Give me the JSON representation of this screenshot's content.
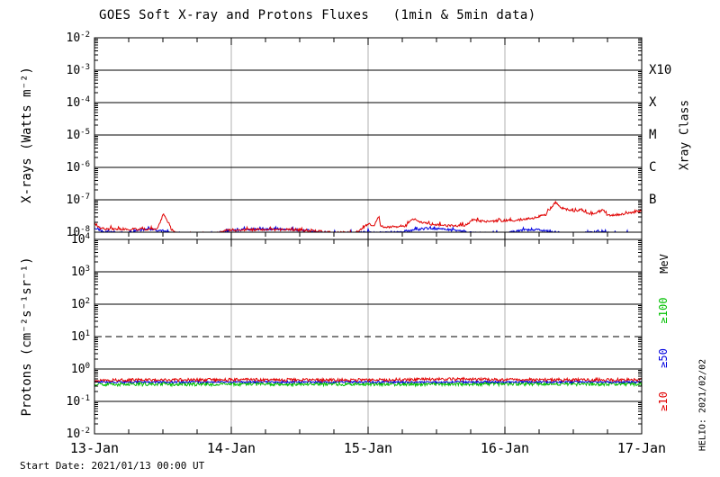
{
  "title": "GOES Soft X-ray and Protons Fluxes   (1min & 5min data)",
  "footer": {
    "start_date": "Start Date: 2021/01/13 00:00 UT"
  },
  "watermark": "HELIO: 2021/02/02",
  "chart_data": {
    "type": "line",
    "title": "GOES Soft X-ray and Protons Fluxes   (1min & 5min data)",
    "x_axis": {
      "tick_labels": [
        "13-Jan",
        "14-Jan",
        "15-Jan",
        "16-Jan",
        "17-Jan"
      ],
      "span_days": 4,
      "minor_tick_hours": 6,
      "day_gridlines": [
        1,
        2,
        3
      ],
      "gridline_color": "#b0b0b0"
    },
    "panels": [
      {
        "name": "xray-flux-panel",
        "ylabel": "X-rays (Watts m⁻²)",
        "y_log_range": [
          -8,
          -2
        ],
        "y_tick_exponents": [
          -2,
          -3,
          -4,
          -5,
          -6,
          -7,
          -8
        ],
        "right_axis_title": "Xray Class",
        "class_labels": [
          {
            "label": "X10",
            "log_level": -3
          },
          {
            "label": "X",
            "log_level": -4
          },
          {
            "label": "M",
            "log_level": -5
          },
          {
            "label": "C",
            "log_level": -6
          },
          {
            "label": "B",
            "log_level": -7
          }
        ],
        "solid_hlines_log": [
          -3,
          -4,
          -5,
          -6,
          -7
        ],
        "dashed_hlines_log": [],
        "series": [
          {
            "name": "xray-series-blue",
            "color": "#0000e0",
            "noise": 0.035,
            "spiky": true,
            "points": [
              [
                0.0,
                -7.9
              ],
              [
                0.06,
                -7.98
              ],
              [
                0.25,
                -8.02
              ],
              [
                0.32,
                -7.94
              ],
              [
                0.42,
                -7.92
              ],
              [
                0.5,
                -7.95
              ],
              [
                0.56,
                -8.02
              ],
              [
                0.75,
                -8.06
              ],
              [
                0.9,
                -8.04
              ],
              [
                0.98,
                -7.96
              ],
              [
                1.15,
                -7.91
              ],
              [
                1.35,
                -7.9
              ],
              [
                1.55,
                -7.94
              ],
              [
                1.65,
                -8.0
              ],
              [
                1.85,
                -8.03
              ],
              [
                2.0,
                -7.99
              ],
              [
                2.1,
                -8.02
              ],
              [
                2.3,
                -7.96
              ],
              [
                2.42,
                -7.88
              ],
              [
                2.55,
                -7.9
              ],
              [
                2.65,
                -7.96
              ],
              [
                2.8,
                -8.03
              ],
              [
                3.0,
                -8.04
              ],
              [
                3.12,
                -7.94
              ],
              [
                3.22,
                -7.92
              ],
              [
                3.35,
                -8.0
              ],
              [
                3.5,
                -8.05
              ],
              [
                3.68,
                -7.99
              ],
              [
                3.8,
                -8.04
              ],
              [
                4.0,
                -8.03
              ]
            ]
          },
          {
            "name": "xray-series-red",
            "color": "#e00000",
            "noise": 0.035,
            "spiky": true,
            "points": [
              [
                0.0,
                -7.72
              ],
              [
                0.04,
                -7.88
              ],
              [
                0.1,
                -7.9
              ],
              [
                0.45,
                -7.91
              ],
              [
                0.47,
                -7.8
              ],
              [
                0.505,
                -7.42
              ],
              [
                0.53,
                -7.62
              ],
              [
                0.56,
                -7.9
              ],
              [
                0.6,
                -8.02
              ],
              [
                0.7,
                -8.06
              ],
              [
                0.9,
                -8.04
              ],
              [
                0.96,
                -7.95
              ],
              [
                1.1,
                -7.93
              ],
              [
                1.4,
                -7.92
              ],
              [
                1.6,
                -7.96
              ],
              [
                1.75,
                -8.01
              ],
              [
                1.9,
                -8.02
              ],
              [
                1.96,
                -7.9
              ],
              [
                2.0,
                -7.74
              ],
              [
                2.04,
                -7.82
              ],
              [
                2.08,
                -7.5
              ],
              [
                2.09,
                -7.82
              ],
              [
                2.15,
                -7.84
              ],
              [
                2.28,
                -7.8
              ],
              [
                2.33,
                -7.58
              ],
              [
                2.37,
                -7.68
              ],
              [
                2.45,
                -7.76
              ],
              [
                2.6,
                -7.8
              ],
              [
                2.72,
                -7.78
              ],
              [
                2.76,
                -7.62
              ],
              [
                2.85,
                -7.67
              ],
              [
                3.0,
                -7.64
              ],
              [
                3.1,
                -7.62
              ],
              [
                3.2,
                -7.57
              ],
              [
                3.3,
                -7.45
              ],
              [
                3.37,
                -7.07
              ],
              [
                3.4,
                -7.22
              ],
              [
                3.44,
                -7.28
              ],
              [
                3.5,
                -7.36
              ],
              [
                3.56,
                -7.3
              ],
              [
                3.62,
                -7.45
              ],
              [
                3.68,
                -7.38
              ],
              [
                3.72,
                -7.3
              ],
              [
                3.75,
                -7.48
              ],
              [
                3.82,
                -7.46
              ],
              [
                3.9,
                -7.42
              ],
              [
                3.96,
                -7.36
              ],
              [
                4.0,
                -7.34
              ]
            ]
          }
        ]
      },
      {
        "name": "proton-flux-panel",
        "ylabel": "Protons (cm⁻²s⁻¹sr⁻¹)",
        "y_log_range": [
          -2,
          4
        ],
        "y_tick_exponents": [
          4,
          3,
          2,
          1,
          0,
          -1,
          -2
        ],
        "right_axis_title": "MeV",
        "threshold_labels": [
          {
            "label": "≥100",
            "color": "#00c000",
            "log_level": 1.81
          },
          {
            "label": "≥50",
            "color": "#0000e0",
            "log_level": 0.33
          },
          {
            "label": "≥10",
            "color": "#e00000",
            "log_level": -1.0
          }
        ],
        "solid_hlines_log": [
          3,
          2,
          0,
          -1
        ],
        "dashed_hlines_log": [
          1
        ],
        "series": [
          {
            "name": "protons-ge100MeV",
            "color": "#00c000",
            "noise": 0.055,
            "spiky": false,
            "points": [
              [
                0,
                -0.47
              ],
              [
                4,
                -0.46
              ]
            ]
          },
          {
            "name": "protons-ge50MeV",
            "color": "#0000e0",
            "noise": 0.03,
            "spiky": false,
            "points": [
              [
                0,
                -0.4
              ],
              [
                4,
                -0.4
              ]
            ]
          },
          {
            "name": "protons-ge10MeV",
            "color": "#e00000",
            "noise": 0.045,
            "spiky": false,
            "points": [
              [
                0,
                -0.34
              ],
              [
                1,
                -0.33
              ],
              [
                2,
                -0.34
              ],
              [
                2.6,
                -0.31
              ],
              [
                3,
                -0.33
              ],
              [
                4,
                -0.33
              ]
            ]
          }
        ]
      }
    ]
  }
}
